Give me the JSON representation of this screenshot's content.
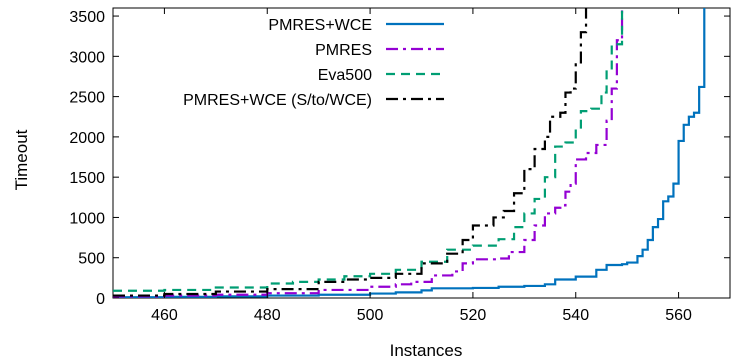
{
  "chart_data": {
    "type": "line",
    "title": "",
    "xlabel": "Instances",
    "ylabel": "Timeout",
    "xlim": [
      450,
      570
    ],
    "ylim": [
      0,
      3600
    ],
    "x_ticks": [
      460,
      480,
      500,
      520,
      540,
      560
    ],
    "y_ticks": [
      0,
      500,
      1000,
      1500,
      2000,
      2500,
      3000,
      3500
    ],
    "grid": false,
    "legend_position": "top-left",
    "series": [
      {
        "name": "PMRES+WCE",
        "color": "#0072bd",
        "dash": "solid",
        "points": [
          [
            450,
            10
          ],
          [
            460,
            15
          ],
          [
            470,
            20
          ],
          [
            480,
            30
          ],
          [
            490,
            40
          ],
          [
            500,
            55
          ],
          [
            505,
            70
          ],
          [
            510,
            95
          ],
          [
            512,
            120
          ],
          [
            520,
            125
          ],
          [
            525,
            140
          ],
          [
            530,
            150
          ],
          [
            534,
            170
          ],
          [
            536,
            230
          ],
          [
            540,
            265
          ],
          [
            544,
            350
          ],
          [
            546,
            410
          ],
          [
            549,
            420
          ],
          [
            550,
            440
          ],
          [
            552,
            520
          ],
          [
            553,
            600
          ],
          [
            554,
            720
          ],
          [
            555,
            880
          ],
          [
            556,
            980
          ],
          [
            557,
            1200
          ],
          [
            558,
            1260
          ],
          [
            559,
            1420
          ],
          [
            560,
            1950
          ],
          [
            561,
            2150
          ],
          [
            562,
            2250
          ],
          [
            563,
            2300
          ],
          [
            564,
            2620
          ],
          [
            565,
            3600
          ]
        ]
      },
      {
        "name": "PMRES",
        "color": "#9400d3",
        "dash": "dashdot",
        "points": [
          [
            450,
            20
          ],
          [
            460,
            30
          ],
          [
            470,
            40
          ],
          [
            480,
            60
          ],
          [
            490,
            100
          ],
          [
            500,
            140
          ],
          [
            505,
            170
          ],
          [
            508,
            200
          ],
          [
            512,
            280
          ],
          [
            516,
            330
          ],
          [
            518,
            430
          ],
          [
            520,
            480
          ],
          [
            525,
            490
          ],
          [
            527,
            570
          ],
          [
            530,
            720
          ],
          [
            532,
            900
          ],
          [
            534,
            1050
          ],
          [
            536,
            1120
          ],
          [
            537,
            1150
          ],
          [
            538,
            1320
          ],
          [
            539,
            1420
          ],
          [
            540,
            1720
          ],
          [
            542,
            1800
          ],
          [
            544,
            1900
          ],
          [
            546,
            2200
          ],
          [
            547,
            2600
          ],
          [
            548,
            3200
          ],
          [
            549,
            3600
          ]
        ]
      },
      {
        "name": "Eva500",
        "color": "#009e73",
        "dash": "dashed",
        "points": [
          [
            450,
            90
          ],
          [
            460,
            100
          ],
          [
            470,
            130
          ],
          [
            480,
            180
          ],
          [
            485,
            200
          ],
          [
            490,
            230
          ],
          [
            495,
            270
          ],
          [
            500,
            300
          ],
          [
            505,
            350
          ],
          [
            510,
            450
          ],
          [
            515,
            600
          ],
          [
            520,
            650
          ],
          [
            525,
            730
          ],
          [
            528,
            880
          ],
          [
            530,
            1050
          ],
          [
            532,
            1230
          ],
          [
            534,
            1500
          ],
          [
            536,
            1880
          ],
          [
            538,
            1930
          ],
          [
            540,
            2100
          ],
          [
            541,
            2320
          ],
          [
            543,
            2350
          ],
          [
            545,
            2550
          ],
          [
            546,
            2850
          ],
          [
            547,
            3150
          ],
          [
            549,
            3600
          ]
        ]
      },
      {
        "name": "PMRES+WCE (S/to/WCE)",
        "color": "#000000",
        "dash": "dashdot",
        "points": [
          [
            450,
            30
          ],
          [
            460,
            50
          ],
          [
            470,
            80
          ],
          [
            480,
            110
          ],
          [
            490,
            200
          ],
          [
            495,
            230
          ],
          [
            500,
            250
          ],
          [
            505,
            300
          ],
          [
            510,
            430
          ],
          [
            515,
            550
          ],
          [
            518,
            720
          ],
          [
            520,
            900
          ],
          [
            524,
            1000
          ],
          [
            526,
            1080
          ],
          [
            528,
            1300
          ],
          [
            530,
            1600
          ],
          [
            532,
            1850
          ],
          [
            534,
            2000
          ],
          [
            535,
            2250
          ],
          [
            537,
            2300
          ],
          [
            538,
            2550
          ],
          [
            539,
            2600
          ],
          [
            540,
            2900
          ],
          [
            541,
            3300
          ],
          [
            542,
            3600
          ]
        ]
      }
    ]
  }
}
